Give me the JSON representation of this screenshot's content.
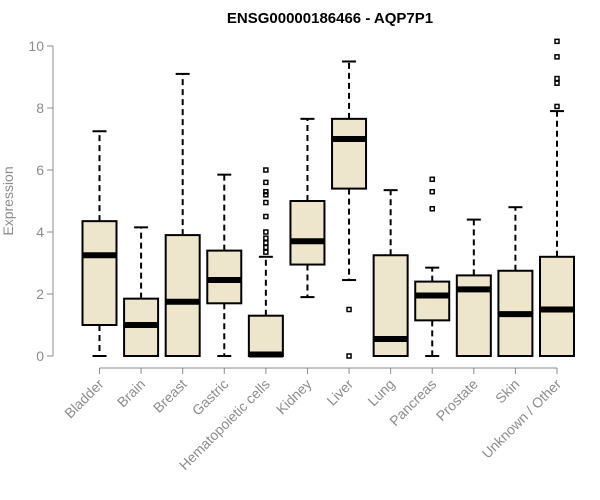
{
  "chart_data": {
    "type": "boxplot",
    "title": "ENSG00000186466 - AQP7P1",
    "xlabel": "",
    "ylabel": "Expression",
    "ylim": [
      0,
      10
    ],
    "yticks": [
      0,
      2,
      4,
      6,
      8,
      10
    ],
    "grid": false,
    "box_color": "#ede5cc",
    "categories": [
      "Bladder",
      "Brain",
      "Breast",
      "Gastric",
      "Hematopoietic cells",
      "Kidney",
      "Liver",
      "Lung",
      "Pancreas",
      "Prostate",
      "Skin",
      "Unknown / Other"
    ],
    "boxes": [
      {
        "min": 0.0,
        "q1": 1.0,
        "median": 3.25,
        "q3": 4.35,
        "max": 7.25,
        "outliers": []
      },
      {
        "min": 0.0,
        "q1": 0.0,
        "median": 1.0,
        "q3": 1.85,
        "max": 4.15,
        "outliers": []
      },
      {
        "min": 0.0,
        "q1": 0.0,
        "median": 1.75,
        "q3": 3.9,
        "max": 9.1,
        "outliers": []
      },
      {
        "min": 0.0,
        "q1": 1.7,
        "median": 2.45,
        "q3": 3.4,
        "max": 5.85,
        "outliers": []
      },
      {
        "min": 0.0,
        "q1": 0.0,
        "median": 0.05,
        "q3": 1.3,
        "max": 3.2,
        "outliers": [
          3.35,
          3.5,
          3.65,
          3.8,
          4.0,
          4.5,
          4.95,
          5.2,
          5.3,
          5.6,
          6.0
        ]
      },
      {
        "min": 1.9,
        "q1": 2.95,
        "median": 3.7,
        "q3": 5.0,
        "max": 7.65,
        "outliers": []
      },
      {
        "min": 2.45,
        "q1": 5.4,
        "median": 7.0,
        "q3": 7.65,
        "max": 9.5,
        "outliers": [
          1.5,
          0.0
        ]
      },
      {
        "min": 0.0,
        "q1": 0.0,
        "median": 0.55,
        "q3": 3.25,
        "max": 5.35,
        "outliers": []
      },
      {
        "min": 0.0,
        "q1": 1.15,
        "median": 1.95,
        "q3": 2.4,
        "max": 2.85,
        "outliers": [
          4.75,
          5.3,
          5.7
        ]
      },
      {
        "min": 0.0,
        "q1": 0.0,
        "median": 2.15,
        "q3": 2.6,
        "max": 4.4,
        "outliers": []
      },
      {
        "min": 0.0,
        "q1": 0.0,
        "median": 1.35,
        "q3": 2.75,
        "max": 4.8,
        "outliers": []
      },
      {
        "min": 0.0,
        "q1": 0.0,
        "median": 1.5,
        "q3": 3.2,
        "max": 7.9,
        "outliers": [
          8.05,
          8.8,
          8.95,
          9.65,
          10.15
        ]
      }
    ]
  }
}
